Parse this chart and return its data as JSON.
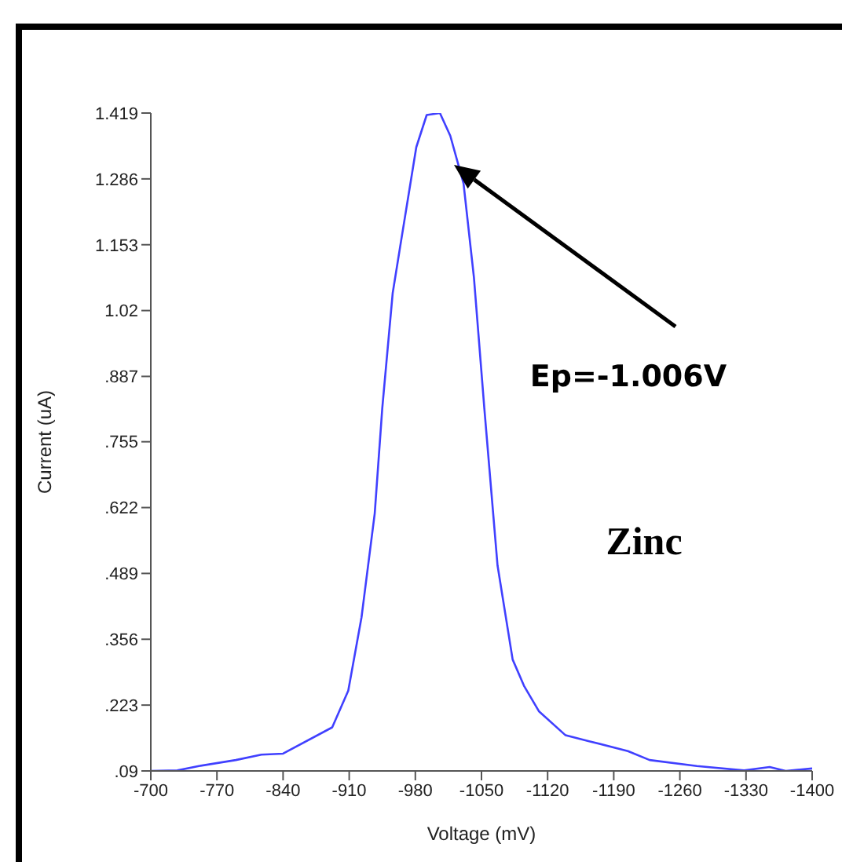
{
  "chart_data": {
    "type": "line",
    "xlabel": "Voltage (mV)",
    "ylabel": "Current (uA)",
    "x": [
      -700,
      -728,
      -751,
      -790,
      -817,
      -840,
      -892,
      -909,
      -923,
      -937,
      -945,
      -956,
      -964,
      -981,
      -992,
      -1006,
      -1017,
      -1031,
      -1042,
      -1053,
      -1067,
      -1083,
      -1095,
      -1111,
      -1139,
      -1164,
      -1205,
      -1228,
      -1278,
      -1328,
      -1355,
      -1372,
      -1400
    ],
    "series": [
      {
        "color": "#4040ff",
        "values": [
          0.09,
          0.091,
          0.1,
          0.112,
          0.123,
          0.125,
          0.178,
          0.252,
          0.4,
          0.61,
          0.823,
          1.055,
          1.15,
          1.35,
          1.415,
          1.419,
          1.373,
          1.277,
          1.087,
          0.823,
          0.505,
          0.315,
          0.262,
          0.21,
          0.162,
          0.15,
          0.13,
          0.112,
          0.1,
          0.091,
          0.098,
          0.09,
          0.095
        ]
      }
    ],
    "xlim": [
      -700,
      -1400
    ],
    "xticks": [
      -700,
      -770,
      -840,
      -910,
      -980,
      -1050,
      -1120,
      -1190,
      -1260,
      -1330,
      -1400
    ],
    "ylim": [
      0.09,
      1.419
    ],
    "yticks": [
      {
        "value": 0.09,
        "label": ".09"
      },
      {
        "value": 0.223,
        "label": ".223"
      },
      {
        "value": 0.356,
        "label": ".356"
      },
      {
        "value": 0.489,
        "label": ".489"
      },
      {
        "value": 0.622,
        "label": ".622"
      },
      {
        "value": 0.755,
        "label": ".755"
      },
      {
        "value": 0.887,
        "label": ".887"
      },
      1.02,
      1.153,
      1.286,
      1.419
    ],
    "marker": "none",
    "line_style": "solid",
    "annotations": [
      "Ep=-1.006V",
      "Zinc"
    ]
  }
}
